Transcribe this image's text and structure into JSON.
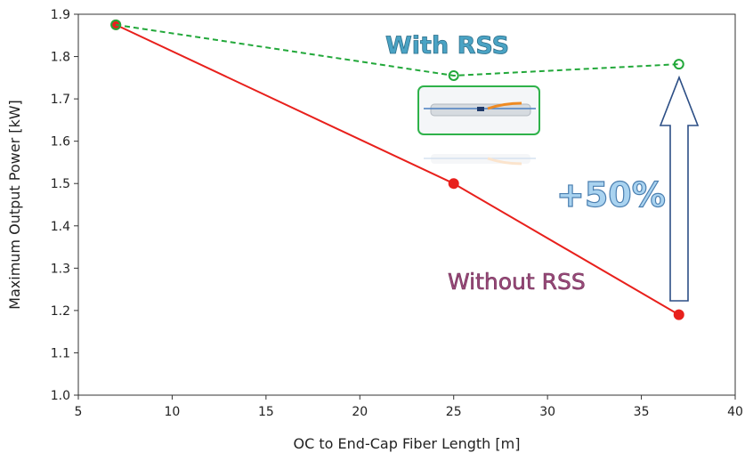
{
  "chart_data": {
    "type": "line",
    "xlabel": "OC to End-Cap Fiber Length [m]",
    "ylabel": "Maximum Output Power [kW]",
    "xlim": [
      5,
      40
    ],
    "ylim": [
      1.0,
      1.9
    ],
    "xticks": [
      "5",
      "10",
      "15",
      "20",
      "25",
      "30",
      "35",
      "40"
    ],
    "yticks": [
      "1.0",
      "1.1",
      "1.2",
      "1.3",
      "1.4",
      "1.5",
      "1.6",
      "1.7",
      "1.8",
      "1.9"
    ],
    "grid": false,
    "series": [
      {
        "name": "With RSS",
        "color": "#22a83a",
        "line_style": "dashed",
        "marker": "open-circle",
        "x": [
          7,
          25,
          37
        ],
        "y": [
          1.875,
          1.755,
          1.782
        ]
      },
      {
        "name": "Without RSS",
        "color": "#e8201c",
        "line_style": "solid",
        "marker": "filled-circle",
        "x": [
          7,
          25,
          37
        ],
        "y": [
          1.875,
          1.5,
          1.19
        ]
      }
    ],
    "annotations": {
      "with_label": "With RSS",
      "without_label": "Without RSS",
      "increase_label": "+50%"
    }
  }
}
